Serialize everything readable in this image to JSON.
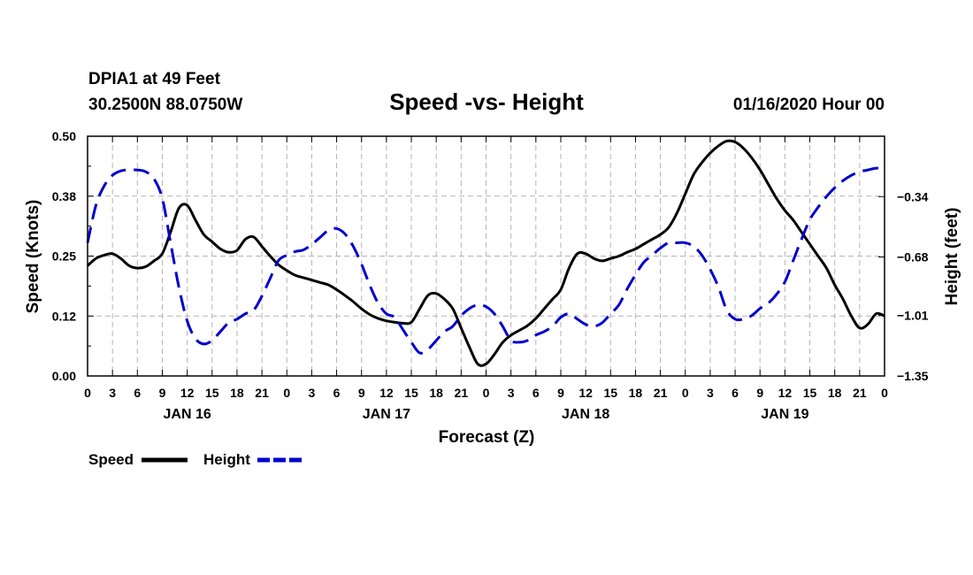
{
  "header": {
    "station": "DPIA1 at 49 Feet",
    "coords": "30.2500N 88.0750W",
    "title": "Speed -vs- Height",
    "datetime": "01/16/2020 Hour 00"
  },
  "chart_data": {
    "type": "line",
    "title": "Speed -vs- Height",
    "xlabel": "Forecast (Z)",
    "ylabel": "Speed (Knots)",
    "y2label": "Height (feet)",
    "xlim": [
      0,
      96
    ],
    "ylim": [
      0.0,
      0.5
    ],
    "y2lim": [
      -1.35,
      -0.0
    ],
    "x_tick_values": [
      0,
      3,
      6,
      9,
      12,
      15,
      18,
      21,
      24,
      27,
      30,
      33,
      36,
      39,
      42,
      45,
      48,
      51,
      54,
      57,
      60,
      63,
      66,
      69,
      72,
      75,
      78,
      81,
      84,
      87,
      90,
      93,
      96
    ],
    "x_tick_labels": [
      "0",
      "3",
      "6",
      "9",
      "12",
      "15",
      "18",
      "21",
      "0",
      "3",
      "6",
      "9",
      "12",
      "15",
      "18",
      "21",
      "0",
      "3",
      "6",
      "9",
      "12",
      "15",
      "18",
      "21",
      "0",
      "3",
      "6",
      "9",
      "12",
      "15",
      "18",
      "21",
      "0"
    ],
    "day_labels": [
      {
        "label": "JAN 16",
        "x": 12
      },
      {
        "label": "JAN 17",
        "x": 36
      },
      {
        "label": "JAN 18",
        "x": 60
      },
      {
        "label": "JAN 19",
        "x": 84
      }
    ],
    "y_ticks": [
      {
        "value": 0.0,
        "label": "0.00"
      },
      {
        "value": 0.125,
        "label": "0.12"
      },
      {
        "value": 0.25,
        "label": "0.25"
      },
      {
        "value": 0.375,
        "label": "0.38"
      },
      {
        "value": 0.5,
        "label": "0.50"
      }
    ],
    "y2_ticks": [
      {
        "value": -1.35,
        "label": "−1.35"
      },
      {
        "value": -1.01,
        "label": "−1.01"
      },
      {
        "value": -0.68,
        "label": "−0.68"
      },
      {
        "value": -0.34,
        "label": "−0.34"
      }
    ],
    "grid": true,
    "legend": [
      {
        "name": "Speed",
        "color": "#000000",
        "style": "solid"
      },
      {
        "name": "Height",
        "color": "#0000cc",
        "style": "dashed"
      }
    ],
    "series": [
      {
        "name": "Speed",
        "axis": "left",
        "color": "#000000",
        "x": [
          0,
          1,
          2,
          3,
          4,
          5,
          6,
          7,
          8,
          9,
          10,
          11,
          12,
          13,
          14,
          15,
          16,
          17,
          18,
          19,
          20,
          21,
          22,
          23,
          24,
          25,
          26,
          27,
          28,
          29,
          30,
          31,
          32,
          33,
          34,
          35,
          36,
          37,
          38,
          39,
          40,
          41,
          42,
          43,
          44,
          45,
          46,
          47,
          48,
          49,
          50,
          51,
          52,
          53,
          54,
          55,
          56,
          57,
          58,
          59,
          60,
          61,
          62,
          63,
          64,
          65,
          66,
          67,
          68,
          69,
          70,
          71,
          72,
          73,
          74,
          75,
          76,
          77,
          78,
          79,
          80,
          81,
          82,
          83,
          84,
          85,
          86,
          87,
          88,
          89,
          90,
          91,
          92,
          93,
          94,
          95,
          96
        ],
        "values": [
          0.23,
          0.245,
          0.252,
          0.255,
          0.245,
          0.23,
          0.225,
          0.228,
          0.24,
          0.255,
          0.3,
          0.35,
          0.356,
          0.325,
          0.295,
          0.28,
          0.265,
          0.258,
          0.262,
          0.285,
          0.29,
          0.27,
          0.25,
          0.232,
          0.22,
          0.21,
          0.205,
          0.2,
          0.195,
          0.19,
          0.18,
          0.168,
          0.155,
          0.14,
          0.128,
          0.12,
          0.115,
          0.112,
          0.11,
          0.112,
          0.14,
          0.168,
          0.172,
          0.16,
          0.14,
          0.1,
          0.06,
          0.025,
          0.025,
          0.045,
          0.07,
          0.085,
          0.095,
          0.105,
          0.12,
          0.14,
          0.16,
          0.18,
          0.225,
          0.255,
          0.255,
          0.245,
          0.24,
          0.245,
          0.25,
          0.258,
          0.265,
          0.275,
          0.285,
          0.295,
          0.31,
          0.34,
          0.38,
          0.42,
          0.445,
          0.465,
          0.48,
          0.49,
          0.488,
          0.475,
          0.455,
          0.43,
          0.4,
          0.37,
          0.345,
          0.325,
          0.3,
          0.275,
          0.25,
          0.225,
          0.19,
          0.16,
          0.125,
          0.1,
          0.108,
          0.13,
          0.125
        ]
      },
      {
        "name": "Height",
        "axis": "right",
        "color": "#0000cc",
        "x": [
          0,
          1,
          2,
          3,
          4,
          5,
          6,
          7,
          8,
          9,
          10,
          11,
          12,
          13,
          14,
          15,
          16,
          17,
          18,
          19,
          20,
          21,
          22,
          23,
          24,
          25,
          26,
          27,
          28,
          29,
          30,
          31,
          32,
          33,
          34,
          35,
          36,
          37,
          38,
          39,
          40,
          41,
          42,
          43,
          44,
          45,
          46,
          47,
          48,
          49,
          50,
          51,
          52,
          53,
          54,
          55,
          56,
          57,
          58,
          59,
          60,
          61,
          62,
          63,
          64,
          65,
          66,
          67,
          68,
          69,
          70,
          71,
          72,
          73,
          74,
          75,
          76,
          77,
          78,
          79,
          80,
          81,
          82,
          83,
          84,
          85,
          86,
          87,
          88,
          89,
          90,
          91,
          92,
          93,
          94,
          95,
          96
        ],
        "values": [
          -0.6,
          -0.39,
          -0.28,
          -0.22,
          -0.195,
          -0.19,
          -0.19,
          -0.2,
          -0.24,
          -0.35,
          -0.6,
          -0.85,
          -1.04,
          -1.14,
          -1.17,
          -1.15,
          -1.1,
          -1.05,
          -1.03,
          -1.0,
          -0.98,
          -0.9,
          -0.8,
          -0.7,
          -0.67,
          -0.65,
          -0.64,
          -0.61,
          -0.57,
          -0.53,
          -0.52,
          -0.55,
          -0.62,
          -0.72,
          -0.84,
          -0.94,
          -1.0,
          -1.02,
          -1.09,
          -1.16,
          -1.22,
          -1.2,
          -1.15,
          -1.1,
          -1.07,
          -1.01,
          -0.97,
          -0.95,
          -0.96,
          -1.0,
          -1.07,
          -1.15,
          -1.16,
          -1.15,
          -1.12,
          -1.1,
          -1.07,
          -1.02,
          -1.0,
          -1.03,
          -1.06,
          -1.07,
          -1.05,
          -1.0,
          -0.95,
          -0.86,
          -0.78,
          -0.71,
          -0.67,
          -0.63,
          -0.6,
          -0.6,
          -0.6,
          -0.62,
          -0.67,
          -0.75,
          -0.85,
          -0.98,
          -1.03,
          -1.03,
          -1.01,
          -0.97,
          -0.94,
          -0.89,
          -0.82,
          -0.7,
          -0.58,
          -0.47,
          -0.4,
          -0.34,
          -0.29,
          -0.25,
          -0.22,
          -0.2,
          -0.19,
          -0.18,
          -0.185
        ]
      }
    ]
  }
}
